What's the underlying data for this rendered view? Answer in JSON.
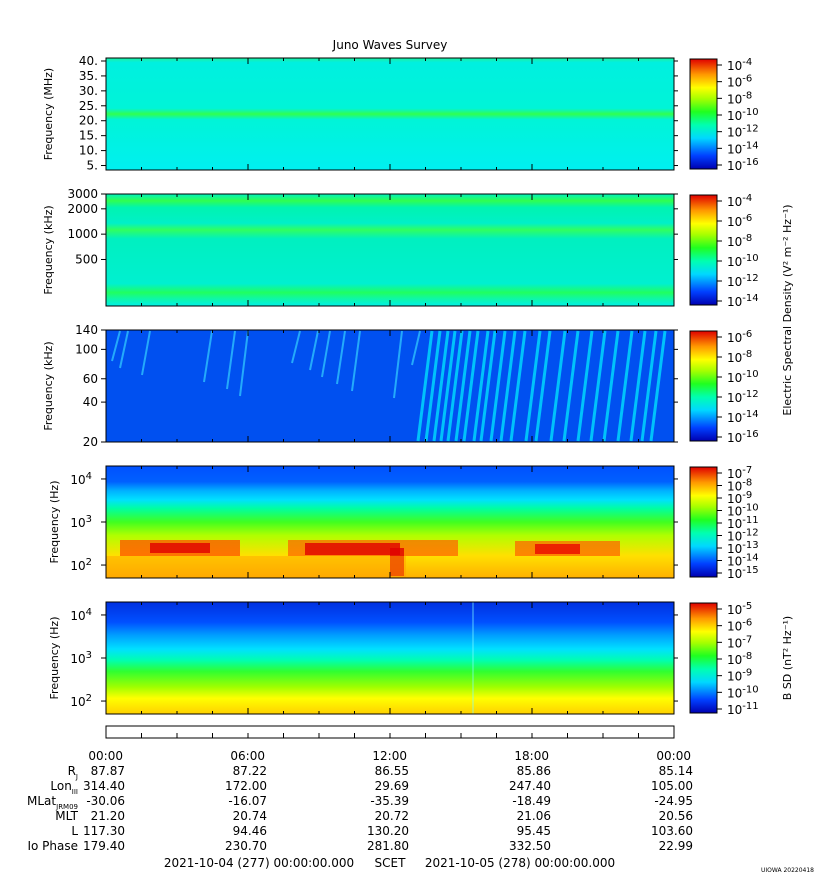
{
  "title": "Juno Waves Survey",
  "footer": {
    "start": "2021-10-04 (277) 00:00:00.000",
    "middle": "SCET",
    "end": "2021-10-05 (278) 00:00:00.000",
    "stamp": "UIOWA 20220418"
  },
  "time_ticks": [
    "00:00",
    "06:00",
    "12:00",
    "18:00",
    "00:00"
  ],
  "ephemeris": [
    {
      "label": "R",
      "sub": "J",
      "values": [
        "87.87",
        "87.22",
        "86.55",
        "85.86",
        "85.14"
      ]
    },
    {
      "label": "Lon",
      "sub": "III",
      "values": [
        "314.40",
        "172.00",
        "29.69",
        "247.40",
        "105.00"
      ]
    },
    {
      "label": "MLat",
      "sub": "JRM09",
      "values": [
        "-30.06",
        "-16.07",
        "-35.39",
        "-18.49",
        "-24.95"
      ]
    },
    {
      "label": "MLT",
      "sub": "",
      "values": [
        "21.20",
        "20.74",
        "20.72",
        "21.06",
        "20.56"
      ]
    },
    {
      "label": "L",
      "sub": "",
      "values": [
        "117.30",
        "94.46",
        "130.20",
        "95.45",
        "103.60"
      ]
    },
    {
      "label": "Io Phase",
      "sub": "",
      "values": [
        "179.40",
        "230.70",
        "281.80",
        "332.50",
        "22.99"
      ]
    }
  ],
  "shared_colorbar_label": "Electric Spectral Density (V² m⁻² Hz⁻¹)",
  "colors": {
    "scale": [
      "#0000c0",
      "#0050ff",
      "#00d0ff",
      "#00ffb0",
      "#00ff30",
      "#a0ff00",
      "#ffff00",
      "#ffa000",
      "#ff3000",
      "#e00000"
    ]
  },
  "chart_data": [
    {
      "type": "heatmap",
      "name": "HFR-high",
      "ylabel": "Frequency (MHz)",
      "yscale": "linear",
      "ylim": [
        3.5,
        41
      ],
      "yticks": [
        "40.",
        "35.",
        "30.",
        "25.",
        "20.",
        "15.",
        "10.",
        "5."
      ],
      "ytick_values": [
        40,
        35,
        30,
        25,
        20,
        15,
        10,
        5
      ],
      "colorbar_ticks": [
        {
          "base": "10",
          "exp": "-4"
        },
        {
          "base": "10",
          "exp": "-6"
        },
        {
          "base": "10",
          "exp": "-8"
        },
        {
          "base": "10",
          "exp": "-10"
        },
        {
          "base": "10",
          "exp": "-12"
        },
        {
          "base": "10",
          "exp": "-14"
        },
        {
          "base": "10",
          "exp": "-16"
        }
      ],
      "colorbar_label": ""
    },
    {
      "type": "heatmap",
      "name": "HFR-low",
      "ylabel": "Frequency (kHz)",
      "yscale": "log",
      "ylim": [
        140,
        3000
      ],
      "yticks": [
        "3000",
        "2000",
        "1000",
        "500"
      ],
      "ytick_values": [
        3000,
        2000,
        1000,
        500
      ],
      "colorbar_ticks": [
        {
          "base": "10",
          "exp": "-4"
        },
        {
          "base": "10",
          "exp": "-6"
        },
        {
          "base": "10",
          "exp": "-8"
        },
        {
          "base": "10",
          "exp": "-10"
        },
        {
          "base": "10",
          "exp": "-12"
        },
        {
          "base": "10",
          "exp": "-14"
        }
      ],
      "colorbar_label": ""
    },
    {
      "type": "heatmap",
      "name": "LFR-high",
      "ylabel": "Frequency (kHz)",
      "yscale": "log",
      "ylim": [
        20,
        140
      ],
      "yticks": [
        "140",
        "100",
        "60",
        "40",
        "20"
      ],
      "ytick_values": [
        140,
        100,
        60,
        40,
        20
      ],
      "colorbar_ticks": [
        {
          "base": "10",
          "exp": "-6"
        },
        {
          "base": "10",
          "exp": "-8"
        },
        {
          "base": "10",
          "exp": "-10"
        },
        {
          "base": "10",
          "exp": "-12"
        },
        {
          "base": "10",
          "exp": "-14"
        },
        {
          "base": "10",
          "exp": "-16"
        }
      ],
      "colorbar_label": ""
    },
    {
      "type": "heatmap",
      "name": "LFR-low-E",
      "ylabel": "Frequency (Hz)",
      "yscale": "log",
      "ylim": [
        50,
        20000
      ],
      "yticks": [
        {
          "base": "10",
          "exp": "4"
        },
        {
          "base": "10",
          "exp": "3"
        },
        {
          "base": "10",
          "exp": "2"
        }
      ],
      "ytick_values": [
        10000,
        1000,
        100
      ],
      "colorbar_ticks": [
        {
          "base": "10",
          "exp": "-7"
        },
        {
          "base": "10",
          "exp": "-8"
        },
        {
          "base": "10",
          "exp": "-9"
        },
        {
          "base": "10",
          "exp": "-10"
        },
        {
          "base": "10",
          "exp": "-11"
        },
        {
          "base": "10",
          "exp": "-12"
        },
        {
          "base": "10",
          "exp": "-13"
        },
        {
          "base": "10",
          "exp": "-14"
        },
        {
          "base": "10",
          "exp": "-15"
        }
      ],
      "colorbar_label": ""
    },
    {
      "type": "heatmap",
      "name": "LFR-low-B",
      "ylabel": "Frequency (Hz)",
      "yscale": "log",
      "ylim": [
        50,
        20000
      ],
      "yticks": [
        {
          "base": "10",
          "exp": "4"
        },
        {
          "base": "10",
          "exp": "3"
        },
        {
          "base": "10",
          "exp": "2"
        }
      ],
      "ytick_values": [
        10000,
        1000,
        100
      ],
      "colorbar_ticks": [
        {
          "base": "10",
          "exp": "-5"
        },
        {
          "base": "10",
          "exp": "-6"
        },
        {
          "base": "10",
          "exp": "-7"
        },
        {
          "base": "10",
          "exp": "-8"
        },
        {
          "base": "10",
          "exp": "-9"
        },
        {
          "base": "10",
          "exp": "-10"
        },
        {
          "base": "10",
          "exp": "-11"
        }
      ],
      "colorbar_label": "B SD (nT² Hz⁻¹)"
    }
  ]
}
